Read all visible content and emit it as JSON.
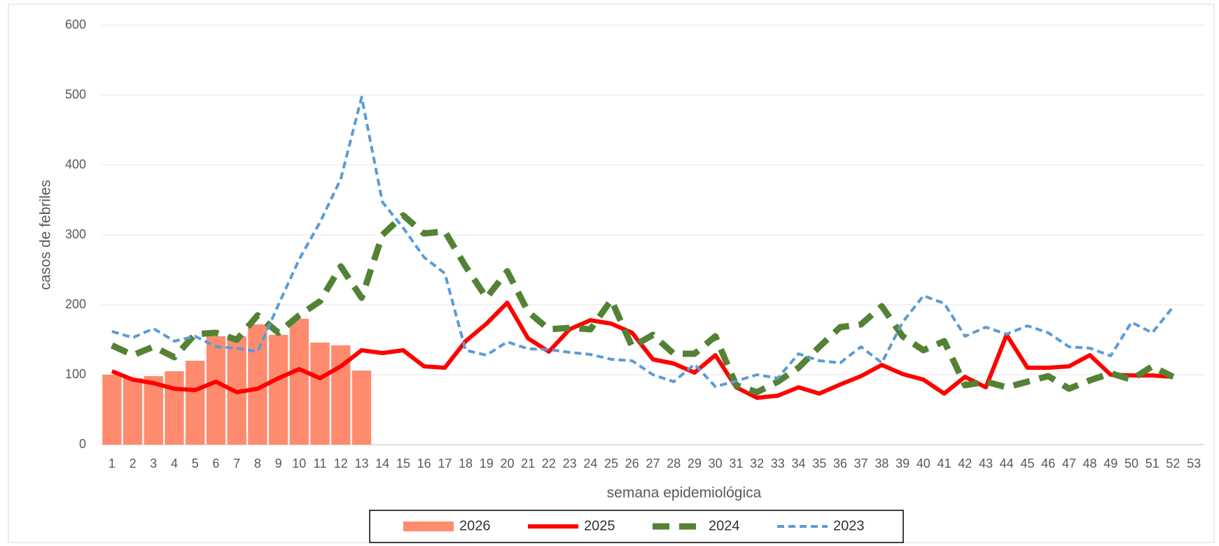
{
  "chart_data": {
    "type": "bar-line",
    "x_label": "semana epidemiológica",
    "y_label": "casos de febriles",
    "categories": [
      "1",
      "2",
      "3",
      "4",
      "5",
      "6",
      "7",
      "8",
      "9",
      "10",
      "11",
      "12",
      "13",
      "14",
      "15",
      "16",
      "17",
      "18",
      "19",
      "20",
      "21",
      "22",
      "23",
      "24",
      "25",
      "26",
      "27",
      "28",
      "29",
      "30",
      "31",
      "32",
      "33",
      "34",
      "35",
      "36",
      "37",
      "38",
      "39",
      "40",
      "41",
      "42",
      "43",
      "44",
      "45",
      "46",
      "47",
      "48",
      "49",
      "50",
      "51",
      "52",
      "53"
    ],
    "ylim": [
      0,
      600
    ],
    "yticks": [
      0,
      100,
      200,
      300,
      400,
      500,
      600
    ],
    "grid": true,
    "legend": "bottom",
    "series": [
      {
        "name": "2026",
        "type": "bar",
        "color": "#ff8b6e",
        "values": [
          100,
          95,
          98,
          105,
          120,
          155,
          155,
          172,
          157,
          180,
          146,
          142,
          106,
          null,
          null,
          null,
          null,
          null,
          null,
          null,
          null,
          null,
          null,
          null,
          null,
          null,
          null,
          null,
          null,
          null,
          null,
          null,
          null,
          null,
          null,
          null,
          null,
          null,
          null,
          null,
          null,
          null,
          null,
          null,
          null,
          null,
          null,
          null,
          null,
          null,
          null,
          null,
          null
        ]
      },
      {
        "name": "2025",
        "type": "line",
        "line_style": "solid",
        "color": "#ff0000",
        "values": [
          105,
          93,
          88,
          80,
          78,
          90,
          75,
          80,
          95,
          108,
          95,
          112,
          135,
          131,
          135,
          112,
          110,
          148,
          173,
          203,
          152,
          133,
          165,
          178,
          173,
          160,
          122,
          116,
          103,
          128,
          82,
          67,
          70,
          82,
          73,
          86,
          98,
          114,
          101,
          93,
          73,
          97,
          82,
          157,
          110,
          110,
          112,
          128,
          100,
          99,
          99,
          97,
          null
        ]
      },
      {
        "name": "2024",
        "type": "line",
        "line_style": "long-dash",
        "color": "#548235",
        "values": [
          142,
          128,
          140,
          125,
          158,
          160,
          150,
          185,
          160,
          185,
          205,
          255,
          210,
          300,
          328,
          302,
          305,
          255,
          210,
          248,
          190,
          165,
          167,
          165,
          207,
          140,
          157,
          130,
          130,
          155,
          85,
          75,
          90,
          110,
          140,
          168,
          172,
          198,
          155,
          135,
          148,
          85,
          90,
          82,
          90,
          98,
          80,
          92,
          102,
          93,
          112,
          97,
          null
        ]
      },
      {
        "name": "2023",
        "type": "line",
        "line_style": "dash",
        "color": "#5b9bd5",
        "values": [
          162,
          153,
          166,
          148,
          155,
          140,
          138,
          133,
          200,
          265,
          318,
          380,
          497,
          347,
          310,
          268,
          245,
          135,
          128,
          147,
          137,
          136,
          132,
          129,
          122,
          120,
          100,
          90,
          115,
          83,
          91,
          100,
          95,
          130,
          120,
          117,
          140,
          117,
          175,
          213,
          202,
          155,
          168,
          158,
          170,
          160,
          140,
          138,
          127,
          175,
          160,
          197,
          null
        ]
      }
    ]
  }
}
